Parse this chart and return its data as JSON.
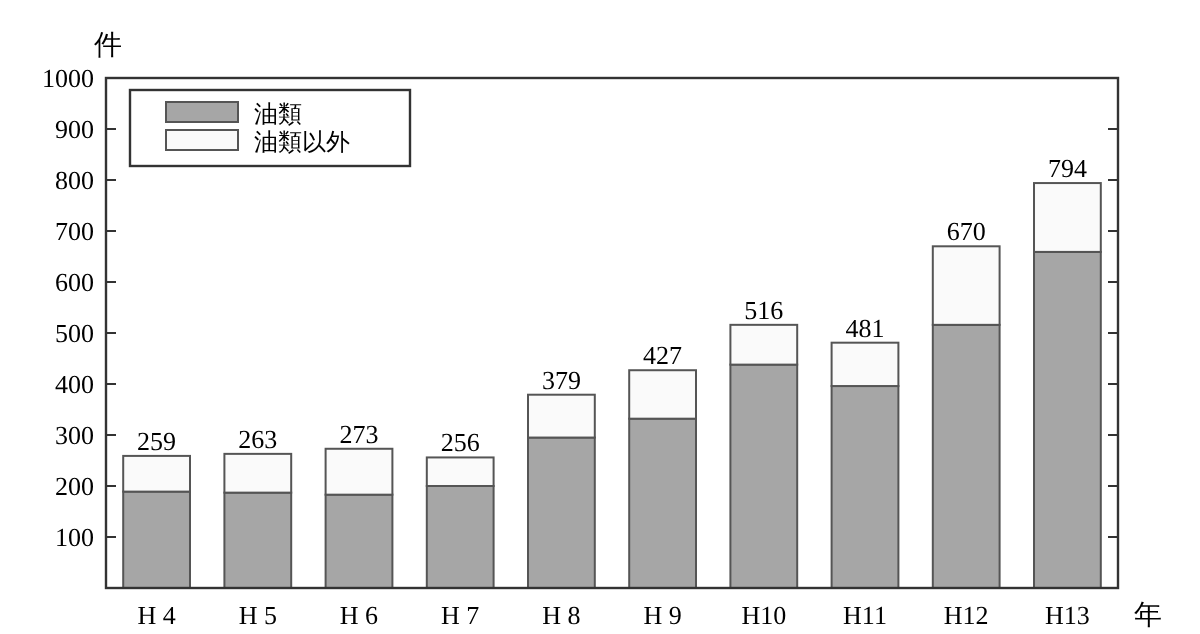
{
  "chart_data": {
    "type": "bar",
    "stacked": true,
    "ylabel": "件",
    "xlabel": "年",
    "categories": [
      "H 4",
      "H 5",
      "H 6",
      "H 7",
      "H 8",
      "H 9",
      "H10",
      "H11",
      "H12",
      "H13"
    ],
    "series": [
      {
        "name": "油類",
        "color": "#a6a6a6",
        "values": [
          189,
          187,
          183,
          200,
          295,
          332,
          438,
          396,
          516,
          659
        ]
      },
      {
        "name": "油類以外",
        "color": "#fafafa",
        "values": [
          70,
          76,
          90,
          56,
          84,
          95,
          78,
          85,
          154,
          135
        ]
      }
    ],
    "totals": [
      "259",
      "263",
      "273",
      "256",
      "379",
      "427",
      "516",
      "481",
      "670",
      "794"
    ],
    "ylim": [
      0,
      1000
    ],
    "yticks": [
      {
        "value": 0,
        "label": null
      },
      100,
      200,
      300,
      400,
      500,
      600,
      700,
      800,
      900,
      1000
    ],
    "grid": false,
    "legend": "top left"
  }
}
